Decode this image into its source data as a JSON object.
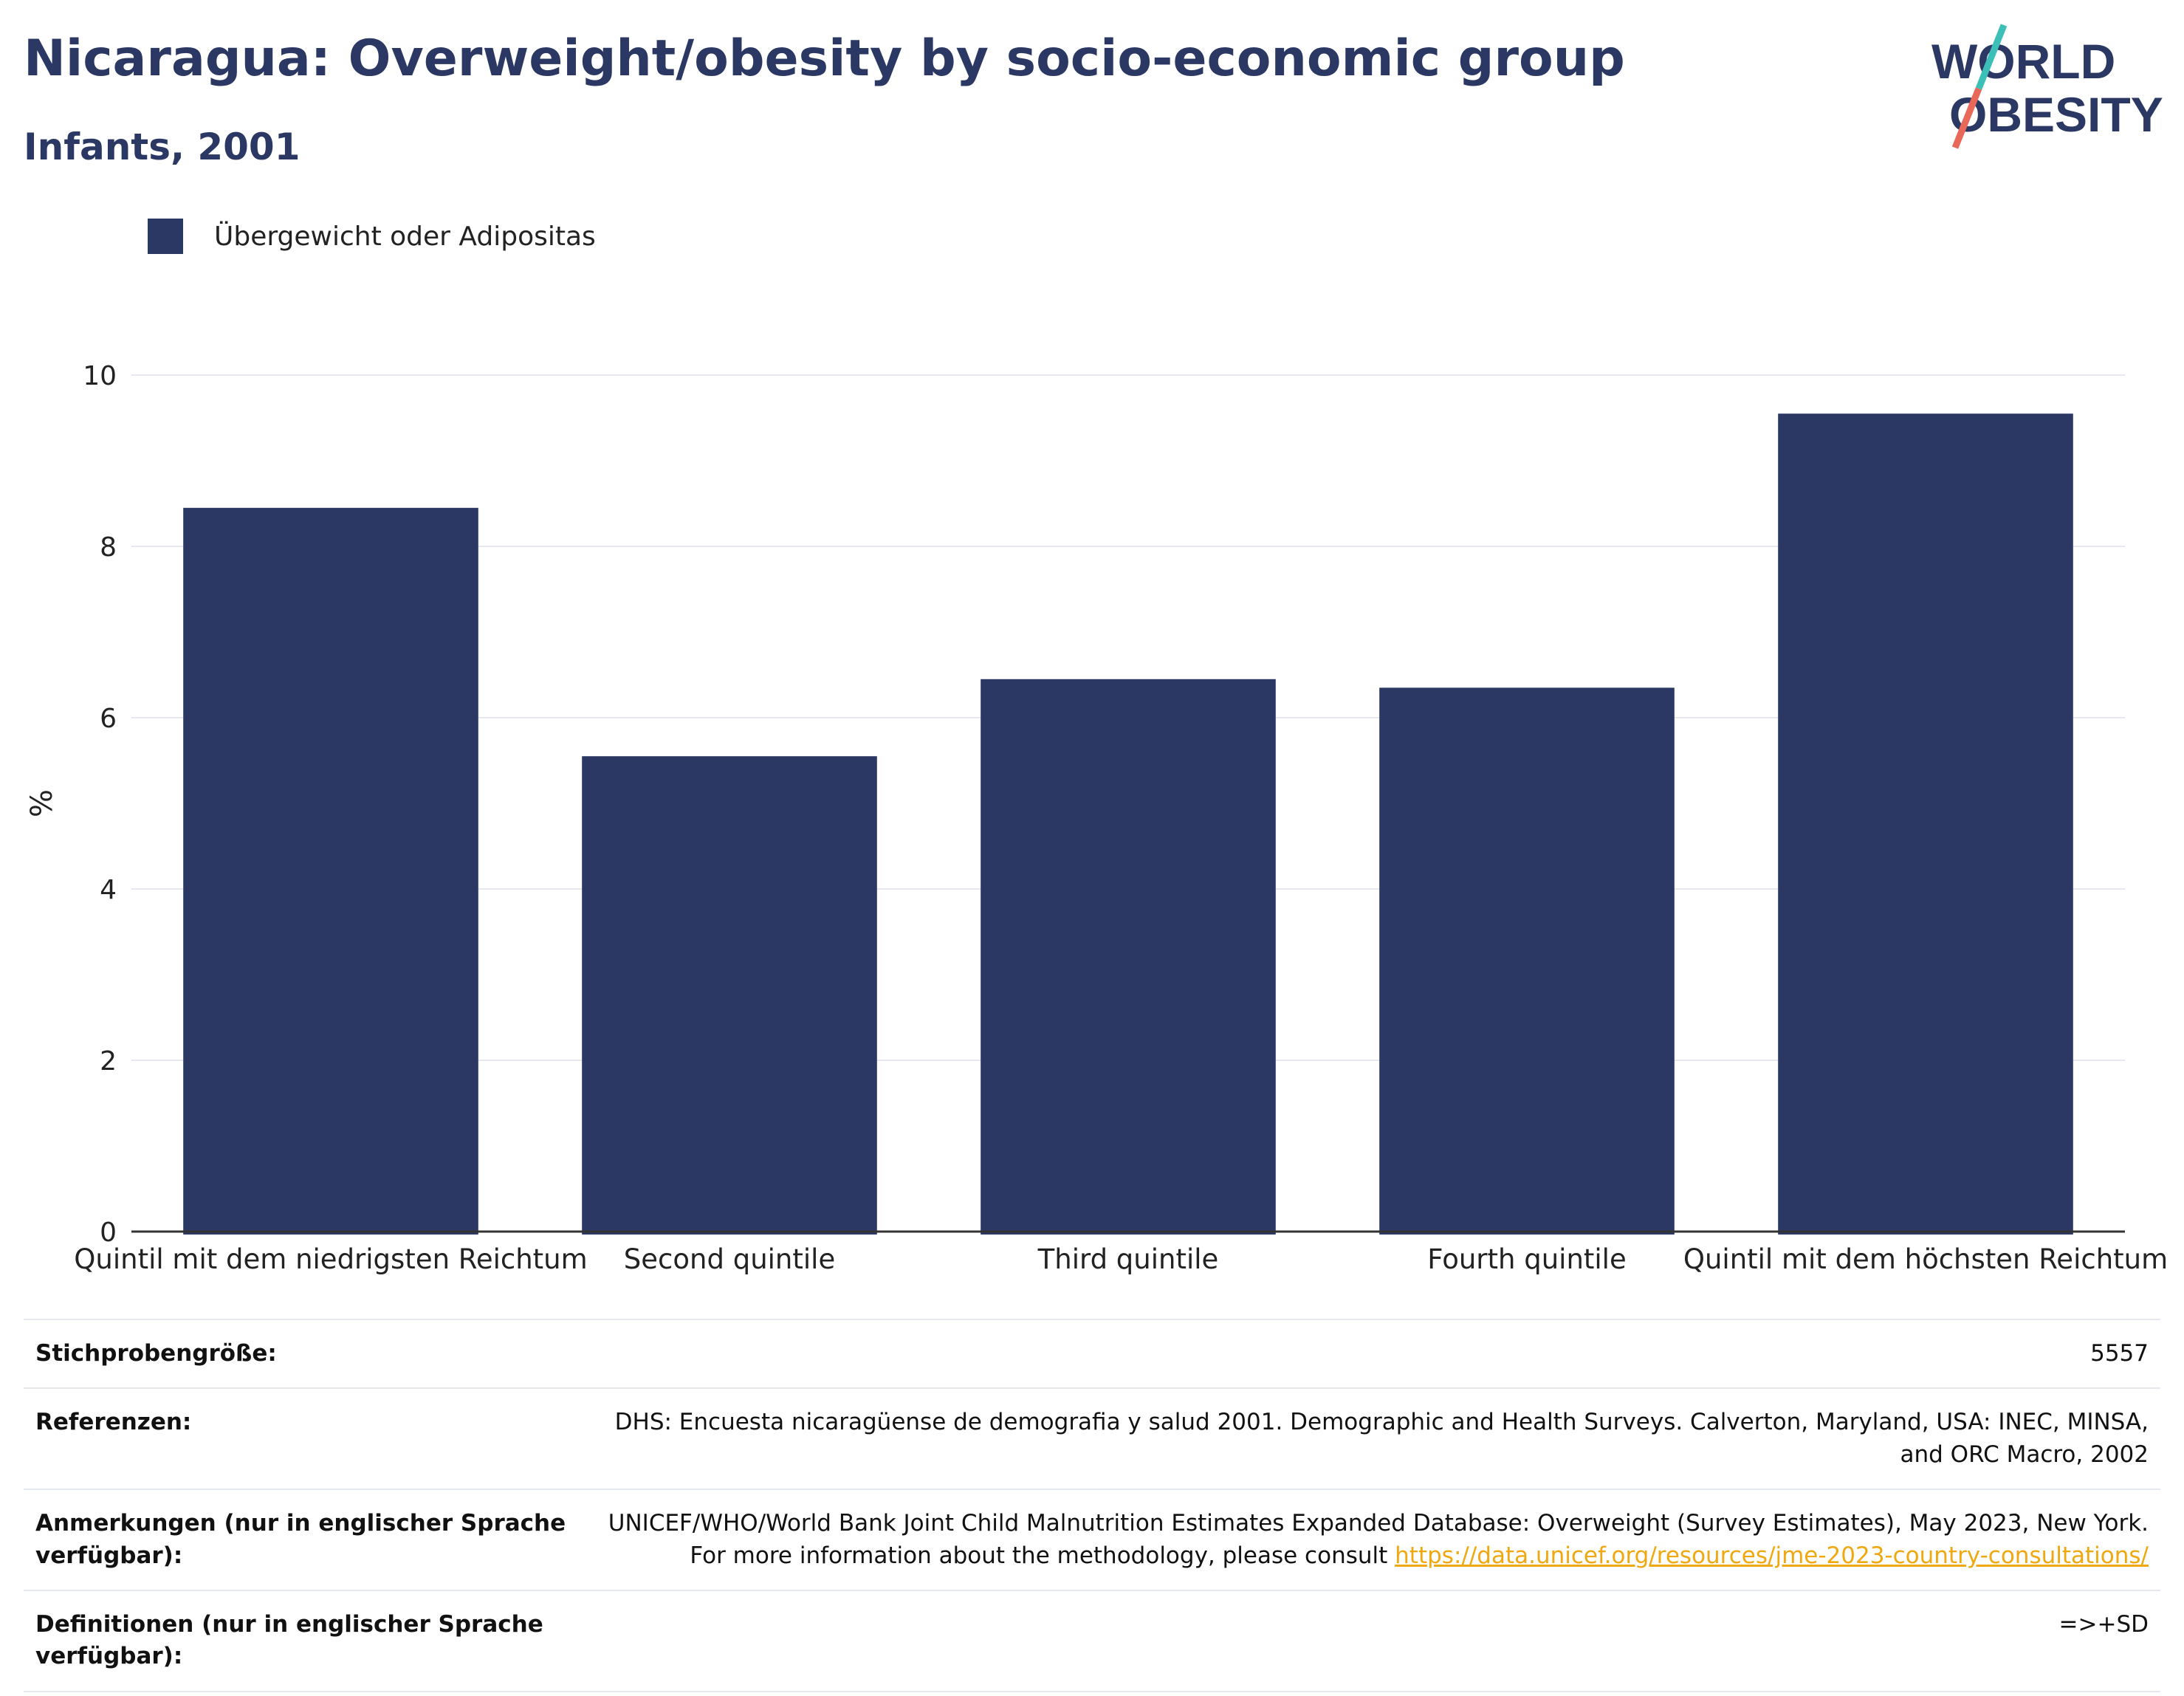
{
  "header": {
    "title": "Nicaragua: Overweight/obesity by socio-economic group",
    "subtitle": "Infants, 2001"
  },
  "logo": {
    "line1": "WORLD",
    "line2": "OBESITY",
    "colors": {
      "text": "#2c3864",
      "slash_top": "#3bbfb7",
      "slash_bottom": "#e8685a"
    }
  },
  "legend": {
    "label": "Übergewicht oder Adipositas",
    "color": "#2c3864"
  },
  "chart_data": {
    "type": "bar",
    "categories": [
      "Quintil mit dem niedrigsten Reichtum",
      "Second quintile",
      "Third quintile",
      "Fourth quintile",
      "Quintil mit dem höchsten Reichtum"
    ],
    "series": [
      {
        "name": "Übergewicht oder Adipositas",
        "values": [
          8.45,
          5.55,
          6.45,
          6.35,
          9.55
        ],
        "color": "#2c3864"
      }
    ],
    "ylabel": "%",
    "ylim": [
      0,
      10
    ],
    "yticks": [
      0,
      2,
      4,
      6,
      8,
      10
    ],
    "grid": true,
    "legend_position": "top-left"
  },
  "meta": {
    "sample_size_label": "Stichprobengröße:",
    "sample_size_value": "5557",
    "references_label": "Referenzen:",
    "references_value": "DHS: Encuesta nicaragüense de demografia y salud 2001. Demographic and Health Surveys. Calverton, Maryland, USA: INEC, MINSA, and ORC Macro, 2002",
    "notes_label": "Anmerkungen (nur in englischer Sprache verfügbar):",
    "notes_value": "UNICEF/WHO/World Bank Joint Child Malnutrition Estimates Expanded Database: Overweight (Survey Estimates), May 2023, New York. For more information about the methodology, please consult",
    "notes_link": "https://data.unicef.org/resources/jme-2023-country-consultations/",
    "definitions_label": "Definitionen (nur in englischer Sprache verfügbar):",
    "definitions_value": "=>+SD"
  }
}
